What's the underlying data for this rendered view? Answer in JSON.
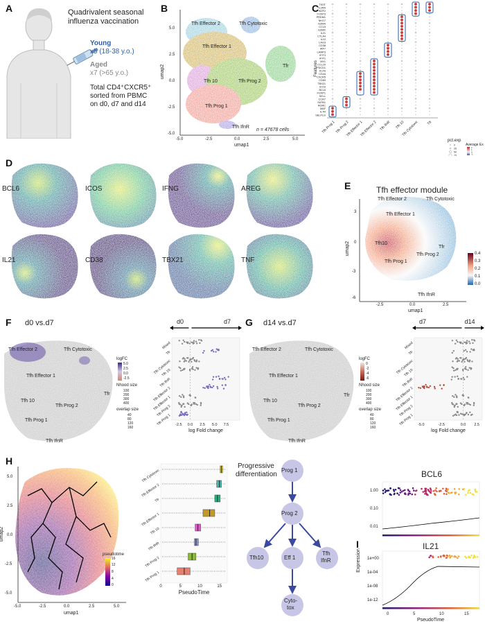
{
  "panels": {
    "A": {
      "label": "A",
      "title_line1": "Quadrivalent seasonal",
      "title_line2": "influenza vaccination",
      "young_label": "Young",
      "young_detail": "x5 (18-38 y.o.)",
      "aged_label": "Aged",
      "aged_detail": "x7 (>65 y.o.)",
      "sort_line1": "Total CD4⁺CXCR5⁺",
      "sort_line2": "sorted from PBMC",
      "sort_line3": "on d0, d7 and d14"
    },
    "B": {
      "label": "B",
      "xlabel": "umap1",
      "ylabel": "umap2",
      "xticks": [
        "-5.0",
        "-2.5",
        "0.0",
        "2.5",
        "5.0"
      ],
      "yticks": [
        "5.0",
        "2.5",
        "0.0",
        "-2.5",
        "-5.0"
      ],
      "n_text": "n = 47678 cells",
      "clusters": [
        "Tfh Effector 2",
        "Tfh Cytotoxic",
        "Tfh Effector 1",
        "Tfr",
        "Tfh 10",
        "Tfh Prog 2",
        "Tfh Prog 1",
        "Tfh IfnR"
      ]
    },
    "C": {
      "label": "C",
      "ylabel": "Features",
      "genes": [
        "TIGIT",
        "IL2RA",
        "IKZF2",
        "FOXP3",
        "PRDM1",
        "NKG7",
        "GZMA",
        "CCL5",
        "GZMK",
        "IL21",
        "CTLA4",
        "IL10",
        "LAG3",
        "CD38",
        "IRF7",
        "LAMP3",
        "IFIT3",
        "IFIT1",
        "MX1",
        "CCL20",
        "PDCD1",
        "KLF6",
        "CD44",
        "CXCR5",
        "CD69",
        "TBX21",
        "ICOS",
        "BCL6",
        "FOXP1",
        "SELL",
        "CCR7",
        "SATB1",
        "RORC",
        "MAF",
        "IL7R",
        "SELPLG"
      ],
      "clusters": [
        "Tfh Prog 1",
        "Tfh Prog 2",
        "Tfh Effector 1",
        "Tfh Effector 2",
        "Tfh IfnR",
        "Tfh 10",
        "Tfh Cytotoxic",
        "Tfr"
      ],
      "legend_pct_title": "pct.exp",
      "legend_pct_values": [
        "0",
        "25",
        "50",
        "75"
      ],
      "legend_avg_title": "Average Ex",
      "legend_avg_values": [
        "2",
        "1",
        "0",
        "-1"
      ]
    },
    "D": {
      "label": "D",
      "genes": [
        "BCL6",
        "ICOS",
        "IFNG",
        "AREG",
        "IL21",
        "CD38",
        "TBX21",
        "TNF"
      ]
    },
    "E": {
      "label": "E",
      "title": "Tfh effector module",
      "xlabel": "umap1",
      "ylabel": "umap2",
      "xticks": [
        "-2.5",
        "0.0",
        "2.5"
      ],
      "yticks": [
        "3",
        "0",
        "-3",
        "-6"
      ],
      "clusters": [
        "Tfh Effector 2",
        "Tfh Cytotoxic",
        "Tfh Effector 1",
        "Tfh10",
        "Tfr",
        "Tfh Prog 2",
        "Tfh Prog 1",
        "Tfh IfnR"
      ],
      "colorbar": [
        "0.4",
        "0.3",
        "0.2",
        "0.1",
        "0.0"
      ]
    },
    "F": {
      "label": "F",
      "title": "d0 vs.d7",
      "left_arrow": "d0",
      "right_arrow": "d7",
      "xlabel": "log Fold change",
      "xticks": [
        "-2.5",
        "0.0",
        "2.5",
        "5.0",
        "7.5"
      ],
      "rows": [
        "Mixed",
        "Tfr",
        "Tfh Cytotoxic",
        "Tfh 10",
        "Tfh IfnR",
        "Tfh Effector 2",
        "Tfh Effector 1",
        "Tfh Prog 2",
        "Tfh Prog 1"
      ],
      "map_clusters": [
        "Tfh Effector 2",
        "Tfh Cytotoxic",
        "Tfh Effector 1",
        "Tfh 10",
        "Tfr",
        "Tfh Prog 2",
        "Tfh Prog 1",
        "Tfh IfnR"
      ],
      "legend_logfc": "logFC",
      "legend_logfc_values": [
        "5.0",
        "2.5",
        "0.0",
        "-2.5"
      ],
      "legend_nhood": "Nhood size",
      "legend_nhood_values": [
        "100",
        "200",
        "300",
        "400"
      ],
      "legend_overlap": "overlap size",
      "legend_overlap_values": [
        "40",
        "80",
        "120",
        "160"
      ]
    },
    "G": {
      "label": "G",
      "title": "d14 vs.d7",
      "left_arrow": "d7",
      "right_arrow": "d14",
      "xlabel": "log Fold change",
      "xticks": [
        "-5.0",
        "-2.5",
        "0.0",
        "2.5"
      ],
      "rows": [
        "Mixed",
        "Tfr",
        "Tfh Cytotoxic",
        "Tfh 10",
        "Tfh IfnR",
        "Tfh Effector 2",
        "Tfh Effector 1",
        "Tfh Prog 2",
        "Tfh Prog 1"
      ],
      "map_clusters": [
        "Tfh Effector 2",
        "Tfh Cytotoxic",
        "Tfh Effector 1",
        "Tfh 10",
        "Tfr",
        "Tfh Prog 2",
        "Tfh Prog 1",
        "Tfh IfnR"
      ],
      "legend_logfc": "logFC",
      "legend_logfc_values": [
        "0",
        "-2",
        "-4",
        "-6"
      ],
      "legend_nhood": "Nhood size",
      "legend_nhood_values": [
        "100",
        "200",
        "300",
        "400"
      ],
      "legend_overlap": "overlap size",
      "legend_overlap_values": [
        "40",
        "80",
        "120",
        "160"
      ]
    },
    "H": {
      "label": "H",
      "xlabel": "umap1",
      "ylabel": "umap2",
      "xticks": [
        "-5.0",
        "-2.5",
        "0.0",
        "2.5",
        "5.0"
      ],
      "yticks": [
        "5.0",
        "2.5",
        "0.0",
        "-2.5",
        "-5.0"
      ],
      "legend_title": "pseudotime",
      "legend_values": [
        "16",
        "12",
        "8",
        "4",
        "0"
      ],
      "box_xlabel": "PseudoTime",
      "box_xticks": [
        "0",
        "5",
        "10",
        "15"
      ],
      "box_rows": [
        "Tfh Cytotoxic",
        "Tfh Effector 2",
        "Tfr",
        "Tfh Effector 1",
        "Tfh 10",
        "Tfh IfnR",
        "Tfh Prog 2",
        "Tfh Prog 1"
      ],
      "diagram_title_1": "Progressive",
      "diagram_title_2": "differentiation",
      "nodes": {
        "prog1": "Prog 1",
        "prog2": "Prog 2",
        "tfh10": "Tfh10",
        "eff1": "Eff 1",
        "ifnr1": "Tfh",
        "ifnr2": "IfnR",
        "cyto1": "Cyto-",
        "cyto2": "tox"
      }
    },
    "I": {
      "label": "I",
      "gene1": "BCL6",
      "gene2": "IL21",
      "ylabel": "Expression",
      "xlabel": "PseudoTime",
      "yticks_top": [
        "1.00",
        "0.10",
        "0.01"
      ],
      "yticks_bottom": [
        "1e+00",
        "1e-04",
        "1e-08",
        "1e-12"
      ],
      "xticks": [
        "0",
        "5",
        "10",
        "15"
      ]
    }
  },
  "chart_data": [
    {
      "type": "box",
      "panel": "H",
      "xlabel": "PseudoTime",
      "categories": [
        "Tfh Cytotoxic",
        "Tfh Effector 2",
        "Tfr",
        "Tfh Effector 1",
        "Tfh 10",
        "Tfh IfnR",
        "Tfh Prog 2",
        "Tfh Prog 1"
      ],
      "medians": [
        15.5,
        15.0,
        14.5,
        12.5,
        9.5,
        9.0,
        8.0,
        6.0
      ],
      "q1": [
        15.2,
        14.3,
        13.8,
        10.8,
        8.8,
        8.6,
        7.0,
        4.2
      ],
      "q3": [
        15.8,
        15.5,
        15.2,
        13.8,
        10.2,
        9.6,
        9.0,
        7.5
      ],
      "xlim": [
        0,
        17
      ],
      "colors": [
        "#d9c43a",
        "#3cbdb0",
        "#2ab07c",
        "#c39a2a",
        "#d55fc4",
        "#8a8fdc",
        "#8bb93a",
        "#e38070"
      ]
    },
    {
      "type": "scatter",
      "panel": "I",
      "series": [
        {
          "name": "BCL6"
        },
        {
          "name": "IL21"
        }
      ],
      "xlim": [
        0,
        17
      ],
      "xlabel": "PseudoTime",
      "ylabel": "Expression"
    }
  ]
}
